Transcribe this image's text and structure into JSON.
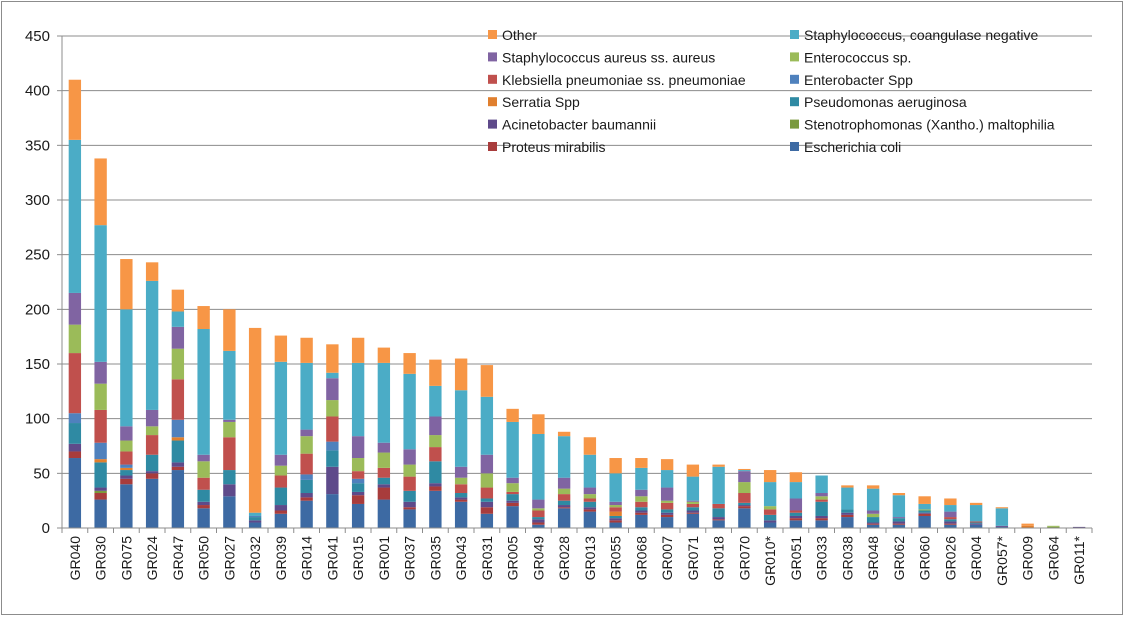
{
  "chart_data": {
    "type": "bar",
    "stacked": true,
    "title": "",
    "xlabel": "",
    "ylabel": "",
    "ylim": [
      0,
      450
    ],
    "yticks": [
      0,
      50,
      100,
      150,
      200,
      250,
      300,
      350,
      400,
      450
    ],
    "grid": true,
    "legend_position": "top-right",
    "categories": [
      "GR040",
      "GR030",
      "GR075",
      "GR024",
      "GR047",
      "GR050",
      "GR027",
      "GR032",
      "GR039",
      "GR014",
      "GR041",
      "GR015",
      "GR001",
      "GR037",
      "GR035",
      "GR043",
      "GR031",
      "GR005",
      "GR049",
      "GR028",
      "GR013",
      "GR055",
      "GR068",
      "GR007",
      "GR071",
      "GR018",
      "GR070",
      "GR010*",
      "GR051",
      "GR033",
      "GR038",
      "GR048",
      "GR062",
      "GR060",
      "GR026",
      "GR004",
      "GR057*",
      "GR009",
      "GR064",
      "GR011*"
    ],
    "series": [
      {
        "name": "Escherichia coli",
        "color": "#3d6aa3",
        "values": [
          64,
          26,
          40,
          45,
          53,
          18,
          29,
          5,
          13,
          25,
          31,
          22,
          26,
          17,
          34,
          24,
          13,
          20,
          3,
          18,
          15,
          5,
          12,
          10,
          13,
          7,
          18,
          5,
          7,
          7,
          10,
          3,
          3,
          11,
          3,
          3,
          1,
          0,
          0,
          0
        ]
      },
      {
        "name": "Proteus mirabilis",
        "color": "#a83c3c",
        "values": [
          6,
          6,
          5,
          5,
          3,
          3,
          0,
          0,
          3,
          3,
          0,
          8,
          11,
          2,
          4,
          2,
          6,
          3,
          2,
          1,
          2,
          2,
          2,
          2,
          1,
          1,
          2,
          0,
          2,
          2,
          2,
          1,
          1,
          2,
          1,
          0,
          0,
          0,
          0,
          0
        ]
      },
      {
        "name": "Stenotrophomonas (Xantho.) maltophilia",
        "color": "#7a9a3e",
        "values": [
          0,
          2,
          0,
          0,
          0,
          0,
          0,
          0,
          0,
          0,
          0,
          0,
          0,
          0,
          0,
          0,
          0,
          0,
          0,
          0,
          0,
          0,
          0,
          0,
          0,
          0,
          0,
          0,
          0,
          0,
          0,
          0,
          0,
          0,
          0,
          0,
          0,
          0,
          1,
          0
        ]
      },
      {
        "name": "Acinetobacter baumannii",
        "color": "#5e4a8a",
        "values": [
          7,
          3,
          3,
          2,
          4,
          3,
          11,
          2,
          5,
          4,
          25,
          3,
          3,
          5,
          3,
          2,
          5,
          2,
          3,
          2,
          2,
          2,
          2,
          2,
          2,
          2,
          1,
          2,
          2,
          2,
          2,
          1,
          2,
          1,
          2,
          1,
          1,
          0,
          0,
          1
        ]
      },
      {
        "name": "Pseudomonas aeruginosa",
        "color": "#2f8aa3",
        "values": [
          19,
          23,
          5,
          15,
          20,
          11,
          13,
          3,
          16,
          12,
          15,
          8,
          6,
          10,
          20,
          4,
          3,
          6,
          2,
          4,
          5,
          2,
          3,
          3,
          3,
          8,
          2,
          5,
          3,
          13,
          3,
          5,
          3,
          2,
          2,
          1,
          0,
          0,
          0,
          0
        ]
      },
      {
        "name": "Serratia Spp",
        "color": "#e07f2e",
        "values": [
          0,
          3,
          2,
          0,
          3,
          0,
          0,
          0,
          0,
          0,
          0,
          0,
          0,
          0,
          0,
          0,
          0,
          0,
          0,
          0,
          0,
          4,
          0,
          0,
          0,
          0,
          0,
          0,
          0,
          0,
          0,
          0,
          0,
          0,
          0,
          0,
          0,
          2,
          0,
          0
        ]
      },
      {
        "name": "Enterobacter Spp",
        "color": "#4f81bd",
        "values": [
          9,
          15,
          3,
          0,
          16,
          0,
          0,
          1,
          0,
          5,
          8,
          4,
          0,
          0,
          0,
          0,
          0,
          0,
          0,
          0,
          0,
          0,
          0,
          0,
          0,
          0,
          0,
          0,
          0,
          0,
          0,
          0,
          0,
          0,
          0,
          0,
          0,
          0,
          0,
          0
        ]
      },
      {
        "name": "Klebsiella pneumoniae ss. pneumoniae",
        "color": "#c0504d",
        "values": [
          55,
          30,
          12,
          18,
          37,
          11,
          30,
          0,
          11,
          19,
          23,
          7,
          9,
          13,
          13,
          8,
          10,
          2,
          6,
          6,
          3,
          4,
          5,
          6,
          3,
          4,
          9,
          5,
          2,
          2,
          0,
          0,
          0,
          0,
          2,
          1,
          0,
          0,
          0,
          0
        ]
      },
      {
        "name": "Enterococcus sp.",
        "color": "#9bbb59",
        "values": [
          26,
          24,
          10,
          8,
          28,
          15,
          14,
          0,
          9,
          16,
          15,
          12,
          14,
          11,
          11,
          6,
          13,
          8,
          2,
          5,
          4,
          2,
          5,
          2,
          2,
          0,
          10,
          3,
          0,
          3,
          0,
          3,
          0,
          1,
          0,
          0,
          0,
          0,
          1,
          0
        ]
      },
      {
        "name": "Staphylococcus aureus ss. aureus",
        "color": "#8064a2",
        "values": [
          29,
          20,
          13,
          15,
          20,
          6,
          2,
          0,
          10,
          6,
          20,
          20,
          9,
          14,
          17,
          10,
          17,
          5,
          8,
          10,
          6,
          3,
          6,
          12,
          1,
          0,
          10,
          0,
          11,
          3,
          0,
          3,
          1,
          0,
          5,
          0,
          0,
          0,
          0,
          0
        ]
      },
      {
        "name": "Staphylococcus, coangulase negative",
        "color": "#4bacc6",
        "values": [
          140,
          125,
          107,
          118,
          14,
          115,
          63,
          3,
          85,
          61,
          5,
          67,
          73,
          69,
          28,
          70,
          53,
          51,
          60,
          38,
          30,
          26,
          20,
          16,
          22,
          34,
          1,
          22,
          15,
          16,
          20,
          20,
          20,
          5,
          6,
          15,
          16,
          0,
          0,
          0
        ]
      },
      {
        "name": "Other",
        "color": "#f79646",
        "values": [
          55,
          61,
          46,
          17,
          20,
          21,
          38,
          169,
          24,
          23,
          26,
          23,
          14,
          19,
          24,
          29,
          29,
          12,
          18,
          4,
          16,
          14,
          9,
          10,
          11,
          2,
          1,
          11,
          9,
          0,
          2,
          3,
          2,
          7,
          6,
          2,
          1,
          2,
          0,
          0
        ]
      }
    ],
    "legend_order": [
      "Other",
      "Staphylococcus, coangulase negative",
      "Staphylococcus aureus ss. aureus",
      "Enterococcus sp.",
      "Klebsiella pneumoniae ss. pneumoniae",
      "Enterobacter Spp",
      "Serratia Spp",
      "Pseudomonas aeruginosa",
      "Acinetobacter baumannii",
      "Stenotrophomonas (Xantho.) maltophilia",
      "Proteus mirabilis",
      "Escherichia coli"
    ]
  }
}
